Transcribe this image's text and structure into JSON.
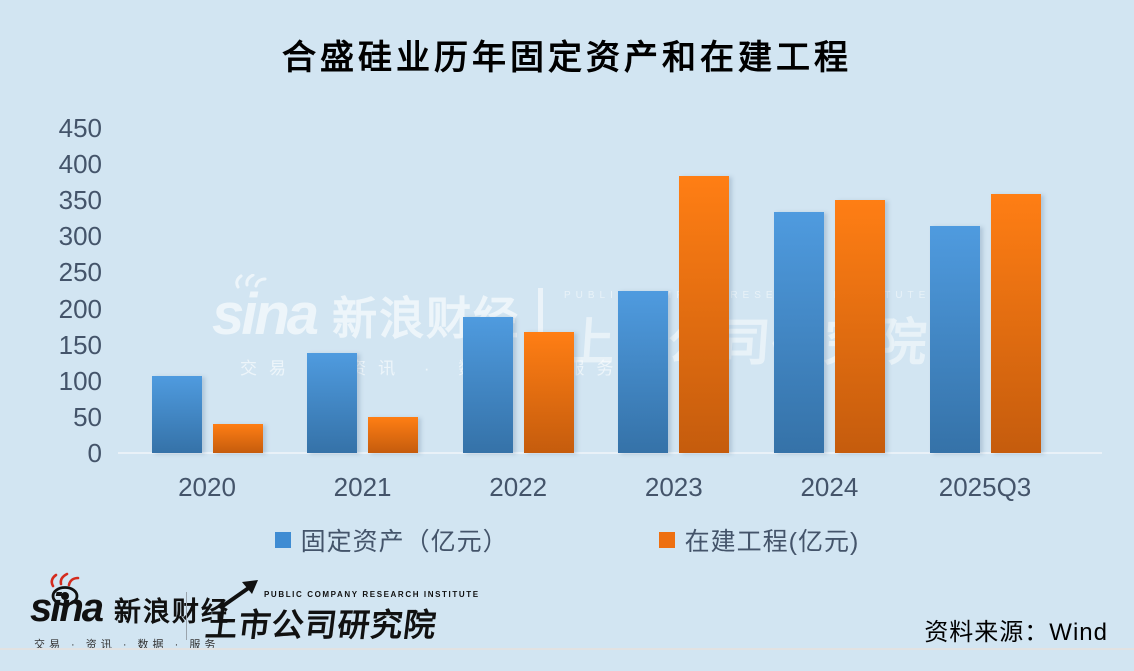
{
  "title": "合盛硅业历年固定资产和在建工程",
  "chart_data": {
    "type": "bar",
    "categories": [
      "2020",
      "2021",
      "2022",
      "2023",
      "2024",
      "2025Q3"
    ],
    "series": [
      {
        "name": "固定资产（亿元）",
        "color": "#3f8cd3",
        "color_top": "#4f9bdf",
        "color_bottom": "#3572a8",
        "values": [
          106,
          138,
          188,
          224,
          334,
          314
        ]
      },
      {
        "name": "在建工程(亿元)",
        "color": "#ee6f10",
        "color_top": "#ff7e14",
        "color_bottom": "#c55c0d",
        "values": [
          40,
          50,
          168,
          383,
          351,
          358
        ]
      }
    ],
    "ylabel": "",
    "xlabel": "",
    "ylim": [
      0,
      450
    ],
    "yticks": [
      450,
      400,
      350,
      300,
      250,
      200,
      150,
      100,
      50,
      0
    ],
    "grid": false,
    "legend_position": "bottom"
  },
  "watermark": {
    "sina": "sina",
    "sina_cn": "新浪财经",
    "tagline": "交易 · 资讯 · 数据 · 服务",
    "institute_en": "PUBLIC COMPANY RESEARCH INSTITUTE",
    "institute": "上市公司研究院"
  },
  "footer": {
    "sina": "sina",
    "sina_cn": "新浪财经",
    "tagline": "交易 · 资讯 · 数据 · 服务",
    "institute_en": "PUBLIC COMPANY RESEARCH INSTITUTE",
    "institute": "上市公司研究院",
    "source": "资料来源：Wind"
  },
  "colors": {
    "background": "#d2e5f2",
    "axis_text": "#44546a",
    "title_text": "#000000",
    "bar_blue": "#3f8cd3",
    "bar_orange": "#ee6f10",
    "sina_red": "#d42b1e"
  }
}
